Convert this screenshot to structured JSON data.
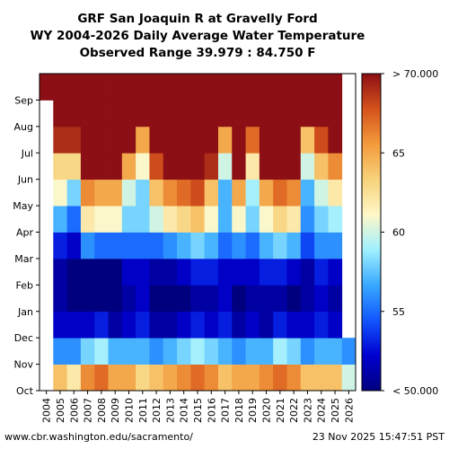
{
  "chart_data": {
    "type": "heatmap",
    "title_lines": [
      "GRF San Joaquin R at Gravelly Ford",
      "WY 2004-2026 Daily Average Water Temperature",
      "Observed Range 39.979 : 84.750 F"
    ],
    "x_tick_labels": [
      "2004",
      "2005",
      "2006",
      "2007",
      "2008",
      "2009",
      "2010",
      "2011",
      "2012",
      "2013",
      "2014",
      "2015",
      "2016",
      "2017",
      "2018",
      "2019",
      "2020",
      "2021",
      "2022",
      "2023",
      "2024",
      "2025",
      "2026"
    ],
    "y_tick_labels": [
      "Oct",
      "Nov",
      "Dec",
      "Jan",
      "Feb",
      "Mar",
      "Apr",
      "May",
      "Jun",
      "Jul",
      "Aug",
      "Sep"
    ],
    "colorbar": {
      "min": 50,
      "max": 70,
      "ticks": [
        {
          "value": 70,
          "label": "> 70.000"
        },
        {
          "value": 65,
          "label": "65"
        },
        {
          "value": 60,
          "label": "60"
        },
        {
          "value": 55,
          "label": "55"
        },
        {
          "value": 50,
          "label": "< 50.000"
        }
      ],
      "colors": [
        "#00007f",
        "#0000cf",
        "#1256ff",
        "#38a9ff",
        "#a0f0ff",
        "#fff7c8",
        "#f7d27a",
        "#f39a3c",
        "#d5521c",
        "#8b0f14"
      ]
    },
    "monthly_temperature_estimates": {
      "months": [
        "Oct",
        "Nov",
        "Dec",
        "Jan",
        "Feb",
        "Mar",
        "Apr",
        "May",
        "Jun",
        "Jul",
        "Aug",
        "Sep"
      ],
      "years": {
        "2004": [
          null,
          null,
          null,
          null,
          null,
          null,
          null,
          null,
          null,
          null,
          null,
          71
        ],
        "2005": [
          64,
          56,
          52,
          51,
          51,
          53,
          57,
          61,
          63,
          69,
          72,
          72
        ],
        "2006": [
          62,
          56,
          52,
          50,
          50,
          52,
          55,
          58,
          63,
          69,
          72,
          72
        ],
        "2007": [
          66,
          58,
          52,
          49,
          50,
          56,
          62,
          66,
          70,
          73,
          74,
          72
        ],
        "2008": [
          67,
          59,
          53,
          49,
          50,
          55,
          61,
          65,
          70,
          73,
          74,
          72
        ],
        "2009": [
          65,
          57,
          51,
          49,
          50,
          55,
          61,
          65,
          70,
          72,
          73,
          72
        ],
        "2010": [
          65,
          57,
          52,
          51,
          52,
          55,
          58,
          60,
          65,
          71,
          73,
          72
        ],
        "2011": [
          63,
          57,
          53,
          52,
          52,
          55,
          58,
          58,
          61,
          65,
          71,
          72
        ],
        "2012": [
          64,
          56,
          51,
          50,
          51,
          55,
          60,
          64,
          68,
          73,
          74,
          72
        ],
        "2013": [
          65,
          57,
          51,
          49,
          51,
          56,
          62,
          66,
          70,
          73,
          74,
          72
        ],
        "2014": [
          66,
          58,
          52,
          50,
          52,
          57,
          63,
          67,
          71,
          74,
          75,
          73
        ],
        "2015": [
          67,
          59,
          53,
          51,
          53,
          58,
          64,
          68,
          72,
          74,
          75,
          73
        ],
        "2016": [
          66,
          58,
          52,
          51,
          53,
          57,
          61,
          64,
          69,
          73,
          74,
          72
        ],
        "2017": [
          64,
          57,
          53,
          52,
          52,
          55,
          57,
          57,
          60,
          65,
          71,
          72
        ],
        "2018": [
          65,
          56,
          51,
          50,
          52,
          56,
          61,
          65,
          70,
          73,
          74,
          72
        ],
        "2019": [
          65,
          57,
          52,
          51,
          52,
          55,
          58,
          59,
          62,
          67,
          72,
          72
        ],
        "2020": [
          66,
          57,
          51,
          51,
          53,
          57,
          61,
          65,
          70,
          73,
          74,
          72
        ],
        "2021": [
          67,
          59,
          53,
          51,
          53,
          58,
          63,
          67,
          71,
          74,
          75,
          73
        ],
        "2022": [
          66,
          58,
          52,
          50,
          52,
          57,
          62,
          66,
          71,
          74,
          75,
          73
        ],
        "2023": [
          64,
          56,
          52,
          51,
          51,
          54,
          56,
          57,
          60,
          64,
          70,
          72
        ],
        "2024": [
          64,
          57,
          53,
          52,
          53,
          56,
          58,
          60,
          64,
          68,
          72,
          72
        ],
        "2025": [
          64,
          57,
          52,
          51,
          52,
          56,
          59,
          62,
          66,
          70,
          73,
          72
        ],
        "2026": [
          60,
          56,
          null,
          null,
          null,
          null,
          null,
          null,
          null,
          null,
          null,
          null
        ]
      }
    }
  },
  "footer": {
    "source": "www.cbr.washington.edu/sacramento/",
    "timestamp": "23 Nov 2025 15:47:51 PST"
  }
}
